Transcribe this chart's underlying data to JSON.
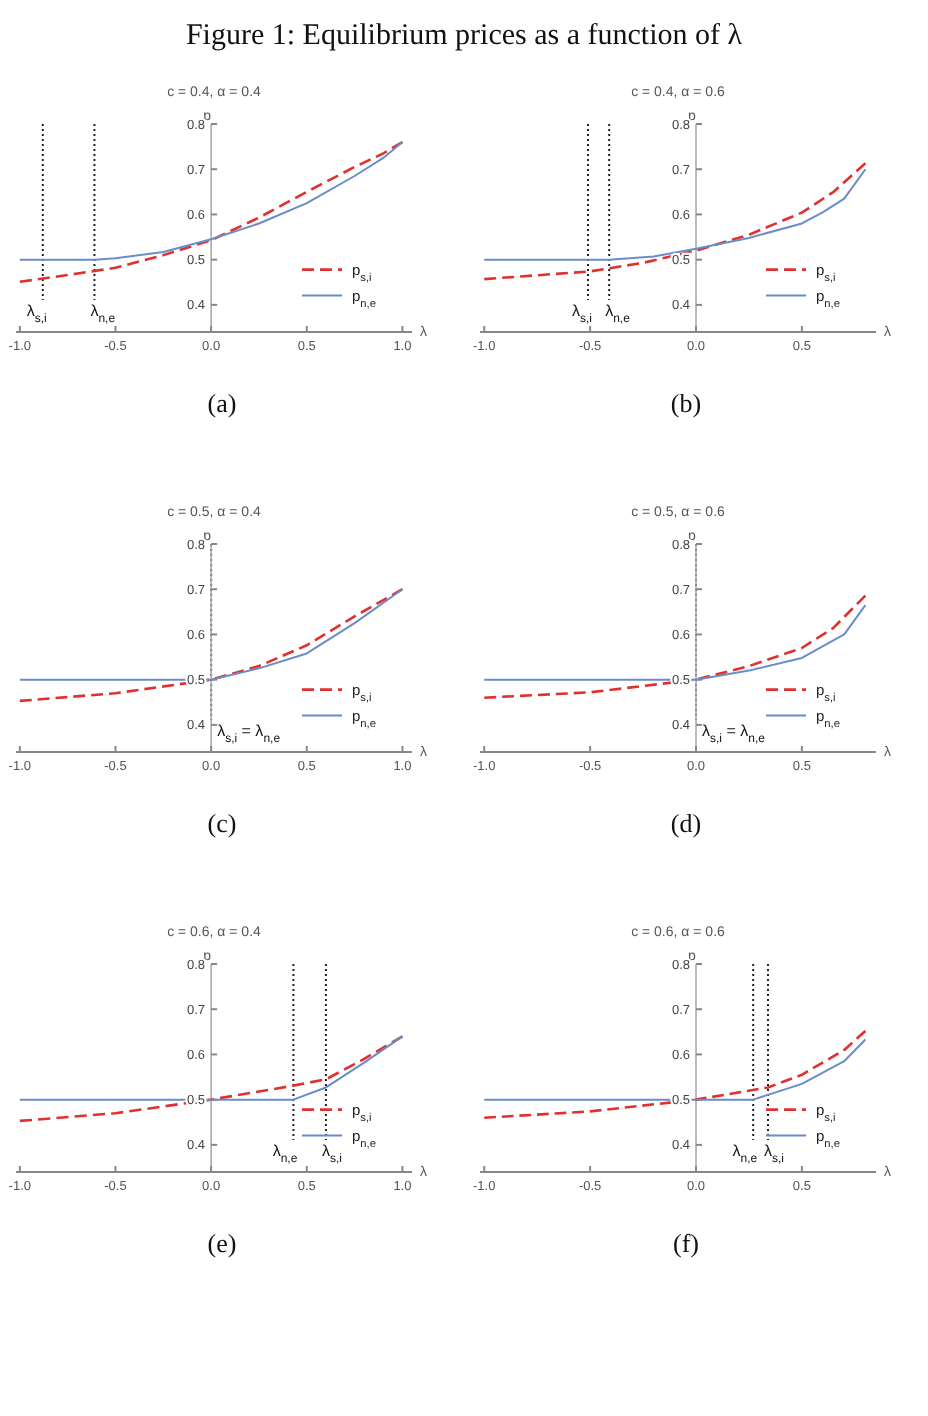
{
  "chart_data": [
    {
      "type": "line",
      "title": "c = 0.4, α = 0.4",
      "xlabel": "λ",
      "ylabel": "p",
      "annotations": [
        "Figure 1: Equilibrium prices as a function of λ",
        "(a)"
      ],
      "xlim": [
        -1.02,
        1.05
      ],
      "ylim": [
        0.34,
        0.8
      ],
      "xticks": [
        {
          "value": -1,
          "label": "-1.0"
        },
        {
          "value": -0.5,
          "label": "-0.5"
        },
        {
          "value": 0,
          "label": "0.0"
        },
        {
          "value": 0.5,
          "label": "0.5"
        },
        {
          "value": 1,
          "label": "1.0"
        }
      ],
      "yticks": [
        0.4,
        0.5,
        0.6,
        0.7,
        0.8
      ],
      "legend": "right",
      "ref_lines": [
        {
          "axis": "x",
          "value": -0.88,
          "label": "λ$_{s,i}$",
          "line_style": "dotted"
        },
        {
          "axis": "x",
          "value": -0.61,
          "label": "λ$_{n,e}$",
          "line_style": "dotted"
        }
      ],
      "series": [
        {
          "name": "p$_{s,i}$",
          "color": "#e03030",
          "line_style": "dashed",
          "x": [
            -1,
            -0.75,
            -0.5,
            -0.25,
            0,
            0.25,
            0.5,
            0.75,
            0.9,
            1
          ],
          "values": [
            0.451,
            0.466,
            0.482,
            0.51,
            0.543,
            0.593,
            0.65,
            0.705,
            0.735,
            0.76
          ]
        },
        {
          "name": "p$_{n,e}$",
          "color": "#6a8cc8",
          "line_style": "solid",
          "x": [
            -1,
            -0.61,
            -0.5,
            -0.25,
            0,
            0.25,
            0.5,
            0.75,
            0.9,
            1
          ],
          "values": [
            0.5,
            0.5,
            0.503,
            0.517,
            0.545,
            0.58,
            0.625,
            0.685,
            0.725,
            0.76
          ]
        }
      ]
    },
    {
      "type": "line",
      "title": "c = 0.4, α = 0.6",
      "xlabel": "λ",
      "ylabel": "p",
      "annotations": [
        "(b)"
      ],
      "xlim": [
        -1.02,
        0.85
      ],
      "ylim": [
        0.34,
        0.8
      ],
      "xticks": [
        {
          "value": -1,
          "label": "-1.0"
        },
        {
          "value": -0.5,
          "label": "-0.5"
        },
        {
          "value": 0,
          "label": "0.0"
        },
        {
          "value": 0.5,
          "label": "0.5"
        }
      ],
      "yticks": [
        0.4,
        0.5,
        0.6,
        0.7,
        0.8
      ],
      "legend": "right",
      "ref_lines": [
        {
          "axis": "x",
          "value": -0.51,
          "label": "λ$_{s,i}$",
          "line_style": "dotted"
        },
        {
          "axis": "x",
          "value": -0.41,
          "label": "λ$_{n,e}$",
          "line_style": "dotted"
        }
      ],
      "series": [
        {
          "name": "p$_{s,i}$",
          "color": "#e03030",
          "line_style": "dashed",
          "x": [
            -1,
            -0.5,
            -0.25,
            0,
            0.25,
            0.5,
            0.65,
            0.8
          ],
          "values": [
            0.457,
            0.474,
            0.493,
            0.52,
            0.555,
            0.604,
            0.65,
            0.713
          ]
        },
        {
          "name": "p$_{n,e}$",
          "color": "#6a8cc8",
          "line_style": "solid",
          "x": [
            -1,
            -0.41,
            -0.2,
            0,
            0.25,
            0.5,
            0.6,
            0.7,
            0.8
          ],
          "values": [
            0.5,
            0.5,
            0.507,
            0.524,
            0.548,
            0.58,
            0.605,
            0.635,
            0.7
          ]
        }
      ]
    },
    {
      "type": "line",
      "title": "c = 0.5, α = 0.4",
      "xlabel": "λ",
      "ylabel": "p",
      "annotations": [
        "(c)"
      ],
      "xlim": [
        -1.02,
        1.05
      ],
      "ylim": [
        0.34,
        0.8
      ],
      "xticks": [
        {
          "value": -1,
          "label": "-1.0"
        },
        {
          "value": -0.5,
          "label": "-0.5"
        },
        {
          "value": 0,
          "label": "0.0"
        },
        {
          "value": 0.5,
          "label": "0.5"
        },
        {
          "value": 1,
          "label": "1.0"
        }
      ],
      "yticks": [
        0.4,
        0.5,
        0.6,
        0.7,
        0.8
      ],
      "legend": "right",
      "ref_lines": [
        {
          "axis": "x",
          "value": 0,
          "label": "λ$_{s,i}$ = λ$_{n,e}$",
          "line_style": "dotted"
        }
      ],
      "series": [
        {
          "name": "p$_{s,i}$",
          "color": "#e03030",
          "line_style": "dashed",
          "x": [
            -1,
            -0.5,
            0,
            0.25,
            0.5,
            0.75,
            1
          ],
          "values": [
            0.453,
            0.47,
            0.5,
            0.53,
            0.576,
            0.64,
            0.7
          ]
        },
        {
          "name": "p$_{n,e}$",
          "color": "#6a8cc8",
          "line_style": "solid",
          "x": [
            -1,
            0,
            0.25,
            0.5,
            0.75,
            1
          ],
          "values": [
            0.5,
            0.5,
            0.525,
            0.558,
            0.625,
            0.7
          ]
        }
      ]
    },
    {
      "type": "line",
      "title": "c = 0.5, α = 0.6",
      "xlabel": "λ",
      "ylabel": "p",
      "annotations": [
        "(d)"
      ],
      "xlim": [
        -1.02,
        0.85
      ],
      "ylim": [
        0.34,
        0.8
      ],
      "xticks": [
        {
          "value": -1,
          "label": "-1.0"
        },
        {
          "value": -0.5,
          "label": "-0.5"
        },
        {
          "value": 0,
          "label": "0.0"
        },
        {
          "value": 0.5,
          "label": "0.5"
        }
      ],
      "yticks": [
        0.4,
        0.5,
        0.6,
        0.7,
        0.8
      ],
      "legend": "right",
      "ref_lines": [
        {
          "axis": "x",
          "value": 0,
          "label": "λ$_{s,i}$ = λ$_{n,e}$",
          "line_style": "dotted"
        }
      ],
      "series": [
        {
          "name": "p$_{s,i}$",
          "color": "#e03030",
          "line_style": "dashed",
          "x": [
            -1,
            -0.5,
            0,
            0.25,
            0.5,
            0.65,
            0.8
          ],
          "values": [
            0.46,
            0.472,
            0.5,
            0.53,
            0.57,
            0.615,
            0.686
          ]
        },
        {
          "name": "p$_{n,e}$",
          "color": "#6a8cc8",
          "line_style": "solid",
          "x": [
            -1,
            0,
            0.25,
            0.5,
            0.7,
            0.8
          ],
          "values": [
            0.5,
            0.5,
            0.52,
            0.548,
            0.6,
            0.665
          ]
        }
      ]
    },
    {
      "type": "line",
      "title": "c = 0.6, α = 0.4",
      "xlabel": "λ",
      "ylabel": "p",
      "annotations": [
        "(e)"
      ],
      "xlim": [
        -1.02,
        1.05
      ],
      "ylim": [
        0.34,
        0.8
      ],
      "xticks": [
        {
          "value": -1,
          "label": "-1.0"
        },
        {
          "value": -0.5,
          "label": "-0.5"
        },
        {
          "value": 0,
          "label": "0.0"
        },
        {
          "value": 0.5,
          "label": "0.5"
        },
        {
          "value": 1,
          "label": "1.0"
        }
      ],
      "yticks": [
        0.4,
        0.5,
        0.6,
        0.7,
        0.8
      ],
      "legend": "right",
      "ref_lines": [
        {
          "axis": "x",
          "value": 0.43,
          "label": "λ$_{n,e}$",
          "line_style": "dotted"
        },
        {
          "axis": "x",
          "value": 0.6,
          "label": "λ$_{s,i}$",
          "line_style": "dotted"
        }
      ],
      "series": [
        {
          "name": "p$_{s,i}$",
          "color": "#e03030",
          "line_style": "dashed",
          "x": [
            -1,
            -0.5,
            0,
            0.43,
            0.6,
            0.8,
            1
          ],
          "values": [
            0.453,
            0.47,
            0.5,
            0.531,
            0.545,
            0.59,
            0.64
          ]
        },
        {
          "name": "p$_{n,e}$",
          "color": "#6a8cc8",
          "line_style": "solid",
          "x": [
            -1,
            0.43,
            0.6,
            0.8,
            1
          ],
          "values": [
            0.5,
            0.5,
            0.527,
            0.582,
            0.64
          ]
        }
      ]
    },
    {
      "type": "line",
      "title": "c = 0.6, α = 0.6",
      "xlabel": "λ",
      "ylabel": "p",
      "annotations": [
        "(f)"
      ],
      "xlim": [
        -1.02,
        0.85
      ],
      "ylim": [
        0.34,
        0.8
      ],
      "xticks": [
        {
          "value": -1,
          "label": "-1.0"
        },
        {
          "value": -0.5,
          "label": "-0.5"
        },
        {
          "value": 0,
          "label": "0.0"
        },
        {
          "value": 0.5,
          "label": "0.5"
        }
      ],
      "yticks": [
        0.4,
        0.5,
        0.6,
        0.7,
        0.8
      ],
      "legend": "right",
      "ref_lines": [
        {
          "axis": "x",
          "value": 0.27,
          "label": "λ$_{n,e}$",
          "line_style": "dotted"
        },
        {
          "axis": "x",
          "value": 0.34,
          "label": "λ$_{s,i}$",
          "line_style": "dotted"
        }
      ],
      "series": [
        {
          "name": "p$_{s,i}$",
          "color": "#e03030",
          "line_style": "dashed",
          "x": [
            -1,
            -0.5,
            0,
            0.34,
            0.5,
            0.7,
            0.8
          ],
          "values": [
            0.46,
            0.474,
            0.5,
            0.527,
            0.555,
            0.61,
            0.652
          ]
        },
        {
          "name": "p$_{n,e}$",
          "color": "#6a8cc8",
          "line_style": "solid",
          "x": [
            -1,
            0.27,
            0.5,
            0.7,
            0.8
          ],
          "values": [
            0.5,
            0.5,
            0.535,
            0.585,
            0.633
          ]
        }
      ]
    }
  ]
}
